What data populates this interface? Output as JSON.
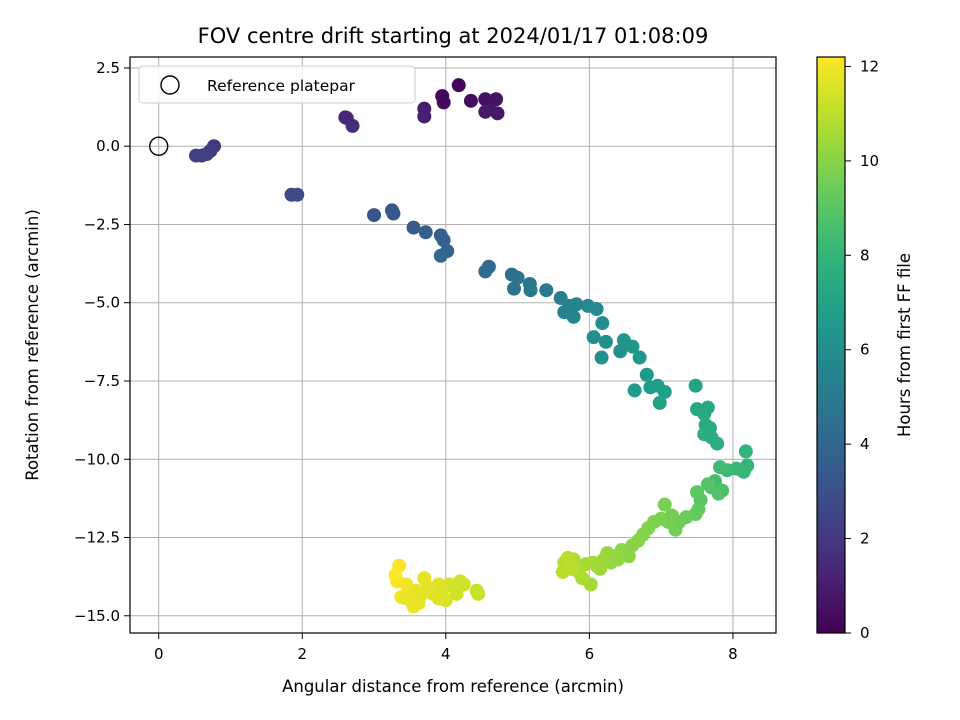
{
  "chart_data": {
    "type": "scatter",
    "title": "FOV centre drift starting at 2024/01/17 01:08:09",
    "xlabel": "Angular distance from reference (arcmin)",
    "ylabel": "Rotation from reference (arcmin)",
    "xlim": [
      -0.4,
      8.6
    ],
    "ylim": [
      -15.55,
      2.85
    ],
    "xticks": [
      0,
      2,
      4,
      6,
      8
    ],
    "xtick_labels": [
      "0",
      "2",
      "4",
      "6",
      "8"
    ],
    "yticks": [
      2.5,
      0,
      -2.5,
      -5,
      -7.5,
      -10,
      -12.5,
      -15
    ],
    "ytick_labels": [
      "2.5",
      "0.0",
      "−2.5",
      "−5.0",
      "−7.5",
      "−10.0",
      "−12.5",
      "−15.0"
    ],
    "grid": true,
    "legend": {
      "placement": "top-left",
      "entries": [
        "Reference platepar"
      ]
    },
    "reference_point": {
      "x": 0,
      "y": 0
    },
    "colorbar": {
      "label": "Hours from first FF file",
      "min": 0,
      "max": 12.2,
      "ticks": [
        0,
        2,
        4,
        6,
        8,
        10,
        12
      ],
      "tick_labels": [
        "0",
        "2",
        "4",
        "6",
        "8",
        "10",
        "12"
      ],
      "colormap": "viridis"
    },
    "points": [
      [
        3.95,
        1.6,
        0.1
      ],
      [
        4.18,
        1.95,
        0.2
      ],
      [
        3.97,
        1.4,
        0.3
      ],
      [
        4.35,
        1.45,
        0.4
      ],
      [
        4.55,
        1.5,
        0.5
      ],
      [
        4.7,
        1.5,
        0.6
      ],
      [
        4.6,
        1.2,
        0.7
      ],
      [
        4.72,
        1.05,
        0.8
      ],
      [
        4.55,
        1.1,
        0.85
      ],
      [
        3.7,
        1.2,
        1.0
      ],
      [
        3.7,
        0.95,
        1.1
      ],
      [
        2.6,
        0.92,
        1.3
      ],
      [
        2.62,
        0.9,
        1.4
      ],
      [
        2.7,
        0.65,
        1.5
      ],
      [
        0.77,
        0.0,
        2.0
      ],
      [
        0.72,
        -0.15,
        2.1
      ],
      [
        0.6,
        -0.3,
        2.2
      ],
      [
        0.67,
        -0.25,
        2.25
      ],
      [
        0.52,
        -0.3,
        2.3
      ],
      [
        1.85,
        -1.55,
        2.7
      ],
      [
        1.93,
        -1.55,
        2.8
      ],
      [
        3.0,
        -2.2,
        3.1
      ],
      [
        3.25,
        -2.05,
        3.2
      ],
      [
        3.27,
        -2.15,
        3.3
      ],
      [
        3.55,
        -2.6,
        3.5
      ],
      [
        3.72,
        -2.75,
        3.6
      ],
      [
        3.93,
        -2.85,
        3.7
      ],
      [
        3.97,
        -3.0,
        3.8
      ],
      [
        4.02,
        -3.35,
        3.9
      ],
      [
        3.93,
        -3.5,
        4.0
      ],
      [
        4.6,
        -3.85,
        4.2
      ],
      [
        4.55,
        -4.0,
        4.3
      ],
      [
        4.92,
        -4.1,
        4.5
      ],
      [
        5.0,
        -4.2,
        4.6
      ],
      [
        4.95,
        -4.55,
        4.7
      ],
      [
        5.17,
        -4.4,
        4.8
      ],
      [
        5.18,
        -4.6,
        4.9
      ],
      [
        5.4,
        -4.6,
        5.0
      ],
      [
        5.6,
        -4.85,
        5.2
      ],
      [
        5.72,
        -5.1,
        5.3
      ],
      [
        5.65,
        -5.3,
        5.4
      ],
      [
        5.82,
        -5.05,
        5.5
      ],
      [
        5.78,
        -5.45,
        5.6
      ],
      [
        5.98,
        -5.1,
        5.7
      ],
      [
        6.1,
        -5.2,
        5.8
      ],
      [
        6.18,
        -5.65,
        5.9
      ],
      [
        6.06,
        -6.1,
        6.0
      ],
      [
        6.23,
        -6.25,
        6.1
      ],
      [
        6.17,
        -6.75,
        6.15
      ],
      [
        6.43,
        -6.55,
        6.2
      ],
      [
        6.48,
        -6.2,
        6.3
      ],
      [
        6.6,
        -6.4,
        6.4
      ],
      [
        6.7,
        -6.75,
        6.5
      ],
      [
        6.63,
        -7.8,
        6.6
      ],
      [
        6.8,
        -7.3,
        6.7
      ],
      [
        6.85,
        -7.7,
        6.75
      ],
      [
        6.95,
        -7.65,
        6.8
      ],
      [
        7.05,
        -7.85,
        6.9
      ],
      [
        6.98,
        -8.2,
        7.0
      ],
      [
        7.48,
        -7.65,
        7.1
      ],
      [
        7.5,
        -8.4,
        7.2
      ],
      [
        7.65,
        -8.35,
        7.3
      ],
      [
        7.6,
        -8.55,
        7.35
      ],
      [
        7.62,
        -8.9,
        7.4
      ],
      [
        7.68,
        -9.0,
        7.45
      ],
      [
        7.7,
        -9.3,
        7.5
      ],
      [
        7.6,
        -9.2,
        7.55
      ],
      [
        7.78,
        -9.5,
        7.6
      ],
      [
        8.18,
        -9.75,
        7.9
      ],
      [
        8.2,
        -10.2,
        8.0
      ],
      [
        8.15,
        -10.4,
        8.1
      ],
      [
        8.05,
        -10.3,
        8.2
      ],
      [
        7.92,
        -10.35,
        8.3
      ],
      [
        7.82,
        -10.25,
        8.4
      ],
      [
        7.75,
        -10.7,
        8.5
      ],
      [
        7.7,
        -10.9,
        8.6
      ],
      [
        7.85,
        -11.0,
        8.7
      ],
      [
        7.8,
        -11.1,
        8.8
      ],
      [
        7.65,
        -10.8,
        8.9
      ],
      [
        7.55,
        -11.3,
        9.0
      ],
      [
        7.5,
        -11.05,
        9.1
      ],
      [
        7.52,
        -11.6,
        9.2
      ],
      [
        7.48,
        -11.75,
        9.3
      ],
      [
        7.35,
        -11.85,
        9.4
      ],
      [
        7.25,
        -12.0,
        9.5
      ],
      [
        7.15,
        -11.8,
        9.55
      ],
      [
        7.2,
        -12.25,
        9.6
      ],
      [
        7.1,
        -12.0,
        9.65
      ],
      [
        7.05,
        -11.45,
        9.7
      ],
      [
        7.0,
        -11.9,
        9.75
      ],
      [
        6.9,
        -12.0,
        9.8
      ],
      [
        6.82,
        -12.2,
        9.85
      ],
      [
        6.75,
        -12.4,
        9.9
      ],
      [
        6.68,
        -12.6,
        9.95
      ],
      [
        6.6,
        -12.75,
        10.0
      ],
      [
        6.55,
        -13.1,
        10.05
      ],
      [
        6.45,
        -12.9,
        10.1
      ],
      [
        6.4,
        -13.2,
        10.15
      ],
      [
        6.35,
        -13.1,
        10.2
      ],
      [
        6.3,
        -13.3,
        10.25
      ],
      [
        6.25,
        -13.0,
        10.3
      ],
      [
        6.2,
        -13.2,
        10.35
      ],
      [
        6.15,
        -13.5,
        10.4
      ],
      [
        6.1,
        -13.4,
        10.45
      ],
      [
        6.05,
        -13.3,
        10.5
      ],
      [
        6.02,
        -14.0,
        10.55
      ],
      [
        5.95,
        -13.35,
        10.6
      ],
      [
        5.9,
        -13.8,
        10.65
      ],
      [
        5.85,
        -13.6,
        10.7
      ],
      [
        5.78,
        -13.2,
        10.75
      ],
      [
        5.7,
        -13.4,
        10.8
      ],
      [
        5.65,
        -13.3,
        10.85
      ],
      [
        5.63,
        -13.6,
        10.9
      ],
      [
        5.7,
        -13.15,
        10.95
      ],
      [
        5.75,
        -13.5,
        11.0
      ],
      [
        4.43,
        -14.2,
        11.2
      ],
      [
        4.45,
        -14.3,
        11.25
      ],
      [
        4.25,
        -14.0,
        11.3
      ],
      [
        4.2,
        -13.9,
        11.35
      ],
      [
        4.15,
        -14.3,
        11.4
      ],
      [
        4.05,
        -14.0,
        11.45
      ],
      [
        4.0,
        -14.5,
        11.5
      ],
      [
        3.95,
        -14.2,
        11.55
      ],
      [
        3.9,
        -14.0,
        11.6
      ],
      [
        3.82,
        -14.3,
        11.65
      ],
      [
        3.75,
        -14.1,
        11.7
      ],
      [
        3.7,
        -13.8,
        11.75
      ],
      [
        3.62,
        -14.6,
        11.8
      ],
      [
        3.55,
        -14.7,
        11.85
      ],
      [
        3.5,
        -14.3,
        11.9
      ],
      [
        3.45,
        -14.0,
        11.95
      ],
      [
        3.38,
        -14.4,
        12.0
      ],
      [
        3.32,
        -13.9,
        12.05
      ],
      [
        3.35,
        -13.4,
        12.1
      ],
      [
        3.3,
        -13.7,
        12.15
      ],
      [
        3.45,
        -14.45,
        11.8
      ],
      [
        3.65,
        -14.35,
        11.7
      ],
      [
        3.9,
        -14.45,
        11.6
      ],
      [
        4.12,
        -14.1,
        11.4
      ],
      [
        3.6,
        -14.2,
        11.75
      ]
    ]
  }
}
